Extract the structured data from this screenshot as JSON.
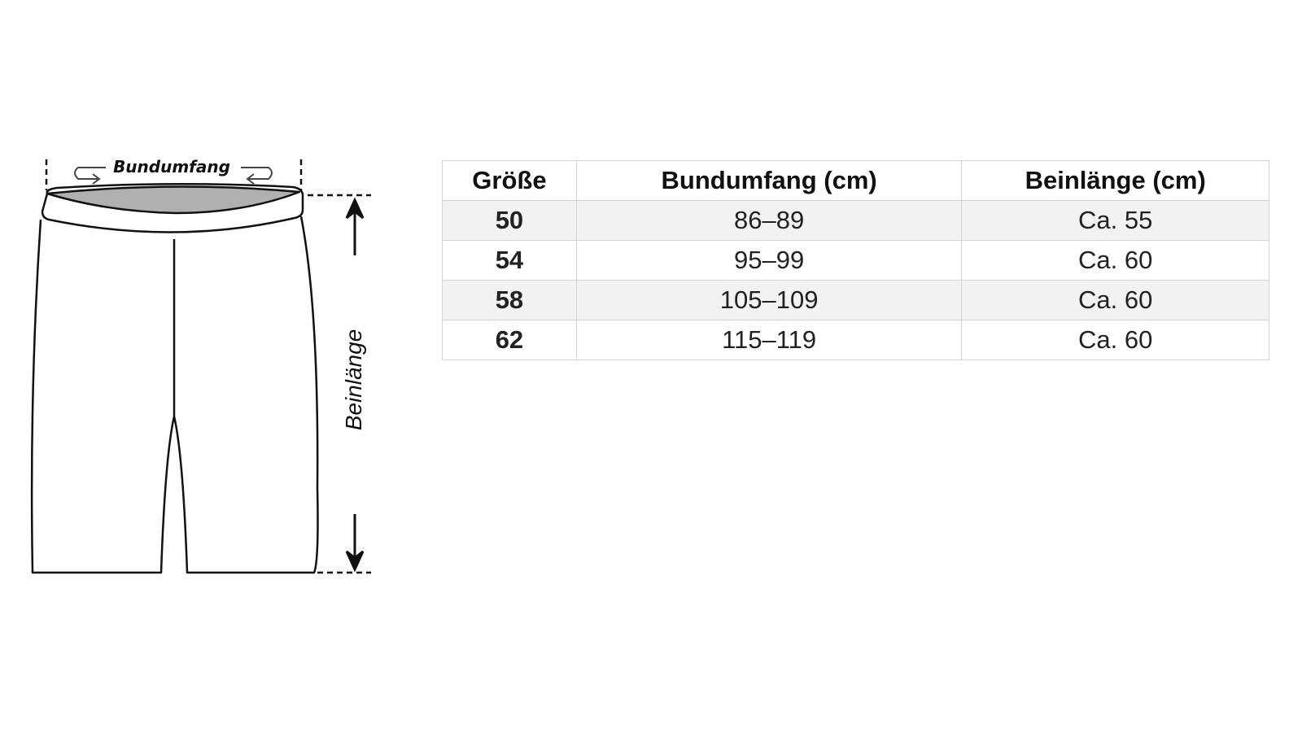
{
  "diagram": {
    "waist_label": "Bundumfang",
    "leg_label": "Beinlänge",
    "waistband_fill": "#b0b0b0"
  },
  "table": {
    "headers": [
      "Größe",
      "Bundumfang (cm)",
      "Beinlänge (cm)"
    ],
    "rows": [
      {
        "size": "50",
        "waist": "86–89",
        "leg": "Ca. 55"
      },
      {
        "size": "54",
        "waist": "95–99",
        "leg": "Ca. 60"
      },
      {
        "size": "58",
        "waist": "105–109",
        "leg": "Ca. 60"
      },
      {
        "size": "62",
        "waist": "115–119",
        "leg": "Ca. 60"
      }
    ],
    "shade_color": "#f2f2f2",
    "border_color": "#d4d4d4"
  }
}
